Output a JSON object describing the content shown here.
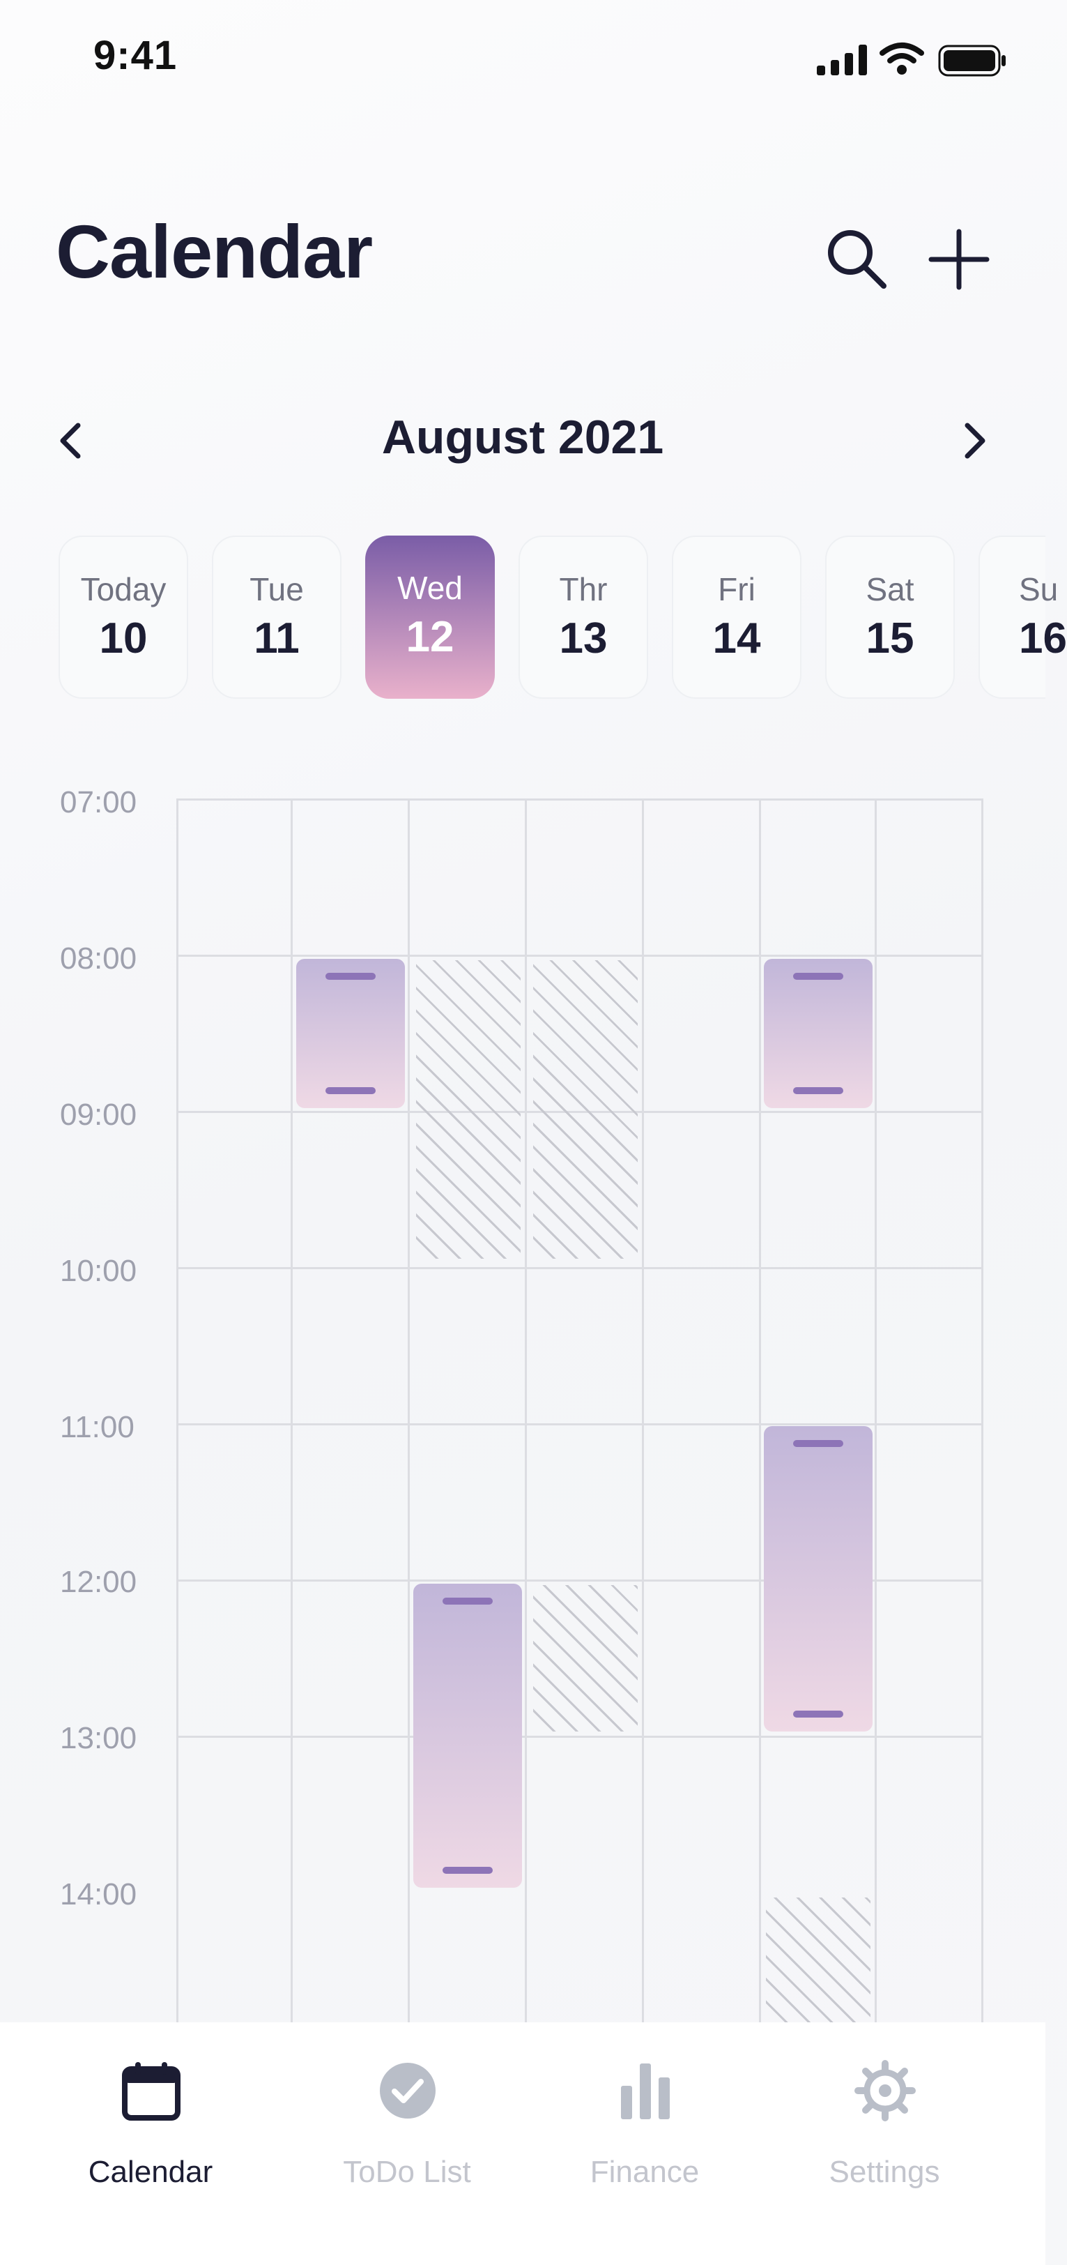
{
  "status_bar": {
    "time": "9:41"
  },
  "header": {
    "title": "Calendar"
  },
  "month_nav": {
    "label": "August 2021"
  },
  "days": [
    {
      "name": "Today",
      "num": "10"
    },
    {
      "name": "Tue",
      "num": "11"
    },
    {
      "name": "Wed",
      "num": "12",
      "selected": true
    },
    {
      "name": "Thr",
      "num": "13"
    },
    {
      "name": "Fri",
      "num": "14"
    },
    {
      "name": "Sat",
      "num": "15"
    },
    {
      "name": "Su",
      "num": "16"
    }
  ],
  "times": [
    "07:00",
    "08:00",
    "09:00",
    "10:00",
    "11:00",
    "12:00",
    "13:00",
    "14:00"
  ],
  "tabs": [
    {
      "label": "Calendar",
      "icon": "calendar-icon",
      "active": true
    },
    {
      "label": "ToDo List",
      "icon": "check-circle-icon"
    },
    {
      "label": "Finance",
      "icon": "bar-chart-icon"
    },
    {
      "label": "Settings",
      "icon": "gear-icon"
    }
  ],
  "colors": {
    "accent_start": "#7a5da7",
    "accent_end": "#e9b1cb",
    "event_handle": "#8d74b7",
    "text_primary": "#1c1d33",
    "text_muted": "#9ea0ad"
  }
}
